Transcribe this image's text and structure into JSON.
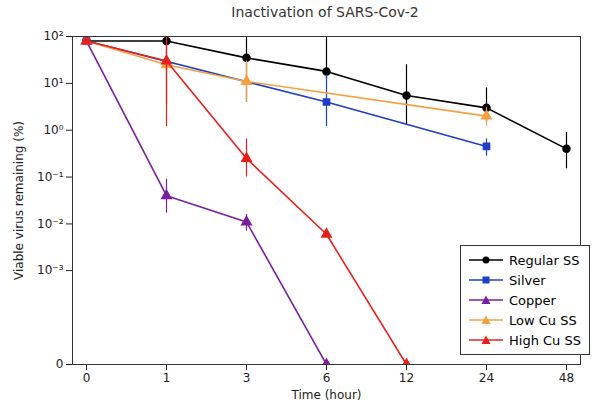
{
  "chart_data": {
    "type": "line",
    "title": "Inactivation of SARS-Cov-2",
    "x_label": "Time (hour)",
    "y_label": "Viable virus remaining (%)",
    "categories": [
      "0",
      "1",
      "3",
      "6",
      "12",
      "24",
      "48"
    ],
    "log": "y",
    "grid": false,
    "legend": "lower right",
    "ylim": [
      0,
      100
    ],
    "yticks": [
      0,
      {
        "value": 0.001,
        "label": "10⁻³"
      },
      {
        "value": 0.01,
        "label": "10⁻²"
      },
      {
        "value": 0.1,
        "label": "10⁻¹"
      },
      {
        "value": 1,
        "label": "10⁰"
      },
      {
        "value": 10,
        "label": "10¹"
      },
      {
        "value": 100,
        "label": "10²"
      }
    ],
    "series": [
      {
        "name": "Regular SS",
        "color": "#000000",
        "marker": "circle",
        "values": [
          80,
          80,
          35,
          18,
          5.5,
          3,
          0.4
        ],
        "error_low": [
          null,
          3.5,
          4,
          12,
          1.3,
          1.5,
          0.15
        ],
        "error_high": [
          null,
          100,
          100,
          100,
          25,
          8,
          0.9
        ]
      },
      {
        "name": "Silver",
        "color": "#1f3fc8",
        "marker": "square",
        "values": [
          80,
          null,
          null,
          4,
          null,
          0.45,
          null
        ],
        "error_low": [
          null,
          null,
          null,
          1.2,
          null,
          0.28,
          null
        ],
        "error_high": [
          null,
          null,
          null,
          15,
          null,
          0.65,
          null
        ]
      },
      {
        "name": "Copper",
        "color": "#7b1fa2",
        "marker": "triangle",
        "values": [
          80,
          0.04,
          0.011,
          0,
          null,
          null,
          null
        ],
        "error_low": [
          null,
          0.017,
          0.007,
          null,
          null,
          null,
          null
        ],
        "error_high": [
          null,
          0.09,
          0.016,
          null,
          null,
          null,
          null
        ]
      },
      {
        "name": "Low Cu SS",
        "color": "#f5a040",
        "marker": "triangle",
        "values": [
          80,
          25,
          11,
          null,
          null,
          2,
          null
        ],
        "error_low": [
          null,
          null,
          4,
          null,
          null,
          1.2,
          null
        ],
        "error_high": [
          null,
          null,
          30,
          null,
          null,
          3,
          null
        ]
      },
      {
        "name": "High Cu SS",
        "color": "#e8201c",
        "marker": "triangle",
        "values": [
          80,
          30,
          0.25,
          0.006,
          0,
          null,
          null
        ],
        "error_low": [
          null,
          1.2,
          0.1,
          null,
          null,
          null,
          null
        ],
        "error_high": [
          null,
          120,
          0.65,
          null,
          null,
          null,
          null
        ]
      }
    ]
  }
}
